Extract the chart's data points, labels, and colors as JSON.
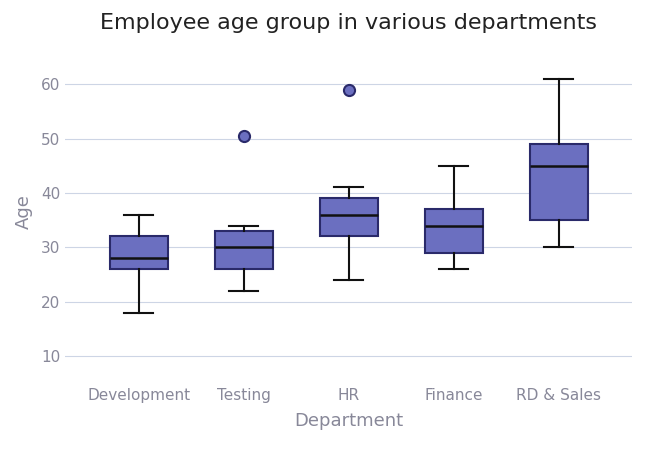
{
  "title": "Employee age group in various departments",
  "xlabel": "Department",
  "ylabel": "Age",
  "categories": [
    "Development",
    "Testing",
    "HR",
    "Finance",
    "RD & Sales"
  ],
  "box_stats": [
    {
      "med": 28,
      "q1": 26,
      "q3": 32,
      "whislo": 18,
      "whishi": 36,
      "fliers": []
    },
    {
      "med": 30,
      "q1": 26,
      "q3": 33,
      "whislo": 22,
      "whishi": 34,
      "fliers": [
        50.5
      ]
    },
    {
      "med": 36,
      "q1": 32,
      "q3": 39,
      "whislo": 24,
      "whishi": 41,
      "fliers": [
        59
      ]
    },
    {
      "med": 34,
      "q1": 29,
      "q3": 37,
      "whislo": 26,
      "whishi": 45,
      "fliers": []
    },
    {
      "med": 45,
      "q1": 35,
      "q3": 49,
      "whislo": 30,
      "whishi": 61,
      "fliers": []
    }
  ],
  "box_color": "#6B6FC0",
  "box_edge_color": "#2a2a6a",
  "median_color": "#111111",
  "whisker_color": "#111111",
  "cap_color": "#111111",
  "flier_facecolor": "#6B6FC0",
  "flier_edgecolor": "#2a2a6a",
  "background_color": "#ffffff",
  "grid_color": "#cdd5e5",
  "ylim": [
    5,
    68
  ],
  "yticks": [
    10,
    20,
    30,
    40,
    50,
    60
  ],
  "title_fontsize": 16,
  "label_fontsize": 13,
  "tick_fontsize": 11,
  "tick_color": "#888899",
  "axis_label_color": "#888899"
}
